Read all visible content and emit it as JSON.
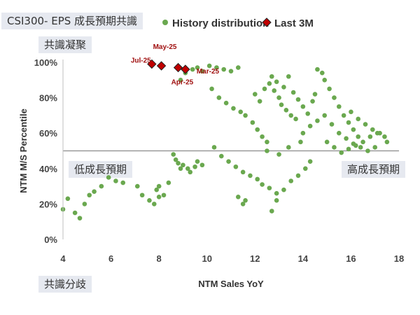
{
  "labels": {
    "title": "CSI300- EPS 成長預期共識",
    "consensus_top": "共識凝聚",
    "low_growth": "低成長預期",
    "high_growth": "高成長預期",
    "consensus_split": "共識分歧"
  },
  "colors": {
    "history": "#6aa84f",
    "recent": "#c00000",
    "recent_edge": "#222222",
    "annotation": "#a01010",
    "refline": "#8c8c8c",
    "label_bg": "#e6e9f0"
  },
  "chart_data": {
    "type": "scatter",
    "xlabel": "NTM Sales YoY",
    "ylabel": "NTM M/S Percentile",
    "xlim": [
      4,
      18
    ],
    "ylim": [
      0,
      100
    ],
    "xticks": [
      4,
      6,
      8,
      10,
      12,
      14,
      16,
      18
    ],
    "yticks": [
      0,
      20,
      40,
      60,
      80,
      100
    ],
    "ytick_labels": [
      "0%",
      "20%",
      "40%",
      "60%",
      "80%",
      "100%"
    ],
    "reference_line_y": 50,
    "legend": [
      {
        "name": "History distribution",
        "marker": "circle"
      },
      {
        "name": "Last 3M",
        "marker": "diamond"
      }
    ],
    "series": [
      {
        "name": "History distribution",
        "points": [
          [
            4.0,
            17
          ],
          [
            4.2,
            23
          ],
          [
            4.5,
            15
          ],
          [
            4.7,
            12
          ],
          [
            4.9,
            20
          ],
          [
            5.1,
            25
          ],
          [
            5.3,
            27
          ],
          [
            5.6,
            30
          ],
          [
            5.9,
            35
          ],
          [
            6.2,
            33
          ],
          [
            6.5,
            32
          ],
          [
            7.1,
            30
          ],
          [
            7.3,
            25
          ],
          [
            7.6,
            22
          ],
          [
            7.8,
            20
          ],
          [
            7.9,
            28
          ],
          [
            8.0,
            30
          ],
          [
            8.2,
            25
          ],
          [
            8.4,
            32
          ],
          [
            8.0,
            24
          ],
          [
            8.6,
            48
          ],
          [
            8.7,
            45
          ],
          [
            8.8,
            43
          ],
          [
            8.9,
            40
          ],
          [
            9.0,
            42
          ],
          [
            9.2,
            40
          ],
          [
            9.3,
            38
          ],
          [
            9.5,
            41
          ],
          [
            9.6,
            44
          ],
          [
            9.8,
            42
          ],
          [
            8.9,
            90
          ],
          [
            9.1,
            94
          ],
          [
            9.4,
            96
          ],
          [
            9.6,
            97
          ],
          [
            9.8,
            95
          ],
          [
            10.1,
            98
          ],
          [
            10.4,
            97
          ],
          [
            10.7,
            96
          ],
          [
            11.0,
            95
          ],
          [
            11.3,
            97
          ],
          [
            10.2,
            85
          ],
          [
            10.5,
            80
          ],
          [
            10.8,
            77
          ],
          [
            11.1,
            74
          ],
          [
            11.4,
            72
          ],
          [
            11.6,
            70
          ],
          [
            11.9,
            66
          ],
          [
            12.1,
            62
          ],
          [
            12.3,
            58
          ],
          [
            12.5,
            55
          ],
          [
            10.3,
            52
          ],
          [
            10.6,
            47
          ],
          [
            10.9,
            44
          ],
          [
            11.2,
            41
          ],
          [
            11.5,
            38
          ],
          [
            11.8,
            36
          ],
          [
            12.1,
            34
          ],
          [
            12.3,
            31
          ],
          [
            12.6,
            29
          ],
          [
            12.9,
            26
          ],
          [
            11.3,
            24
          ],
          [
            11.5,
            20
          ],
          [
            11.6,
            22
          ],
          [
            12.7,
            16
          ],
          [
            12.9,
            22
          ],
          [
            13.2,
            28
          ],
          [
            13.5,
            33
          ],
          [
            13.8,
            36
          ],
          [
            14.1,
            40
          ],
          [
            14.3,
            44
          ],
          [
            12.0,
            82
          ],
          [
            12.2,
            78
          ],
          [
            12.4,
            85
          ],
          [
            12.6,
            88
          ],
          [
            12.8,
            84
          ],
          [
            13.0,
            80
          ],
          [
            13.1,
            76
          ],
          [
            13.3,
            73
          ],
          [
            13.5,
            70
          ],
          [
            13.7,
            68
          ],
          [
            12.7,
            92
          ],
          [
            12.9,
            89
          ],
          [
            13.2,
            86
          ],
          [
            13.4,
            92
          ],
          [
            13.6,
            83
          ],
          [
            13.8,
            79
          ],
          [
            14.0,
            75
          ],
          [
            14.2,
            71
          ],
          [
            14.4,
            78
          ],
          [
            14.5,
            82
          ],
          [
            14.6,
            96
          ],
          [
            14.8,
            94
          ],
          [
            14.9,
            90
          ],
          [
            15.1,
            85
          ],
          [
            15.3,
            80
          ],
          [
            15.5,
            75
          ],
          [
            15.7,
            70
          ],
          [
            15.9,
            66
          ],
          [
            16.1,
            62
          ],
          [
            16.3,
            58
          ],
          [
            14.0,
            60
          ],
          [
            14.3,
            64
          ],
          [
            14.6,
            67
          ],
          [
            14.9,
            70
          ],
          [
            15.2,
            65
          ],
          [
            15.5,
            60
          ],
          [
            15.8,
            57
          ],
          [
            16.1,
            54
          ],
          [
            16.4,
            52
          ],
          [
            16.7,
            50
          ],
          [
            15.0,
            55
          ],
          [
            15.3,
            52
          ],
          [
            15.6,
            49
          ],
          [
            15.9,
            51
          ],
          [
            16.2,
            53
          ],
          [
            16.5,
            55
          ],
          [
            16.8,
            58
          ],
          [
            17.0,
            52
          ],
          [
            17.2,
            60
          ],
          [
            17.5,
            55
          ],
          [
            16.0,
            72
          ],
          [
            16.3,
            68
          ],
          [
            16.6,
            65
          ],
          [
            16.9,
            62
          ],
          [
            17.1,
            60
          ],
          [
            17.4,
            58
          ],
          [
            12.5,
            50
          ],
          [
            13.0,
            48
          ],
          [
            13.4,
            52
          ],
          [
            13.9,
            55
          ]
        ]
      },
      {
        "name": "Last 3M",
        "points": [
          [
            7.7,
            99
          ],
          [
            8.1,
            98
          ],
          [
            8.8,
            97
          ],
          [
            9.1,
            96
          ]
        ]
      }
    ],
    "annotations": [
      {
        "text": "Jul-25",
        "x": 7.7,
        "y": 99
      },
      {
        "text": "May-25",
        "x": 8.1,
        "y": 98
      },
      {
        "text": "Apr-25",
        "x": 8.8,
        "y": 97
      },
      {
        "text": "Mar-25",
        "x": 9.1,
        "y": 96
      }
    ]
  }
}
